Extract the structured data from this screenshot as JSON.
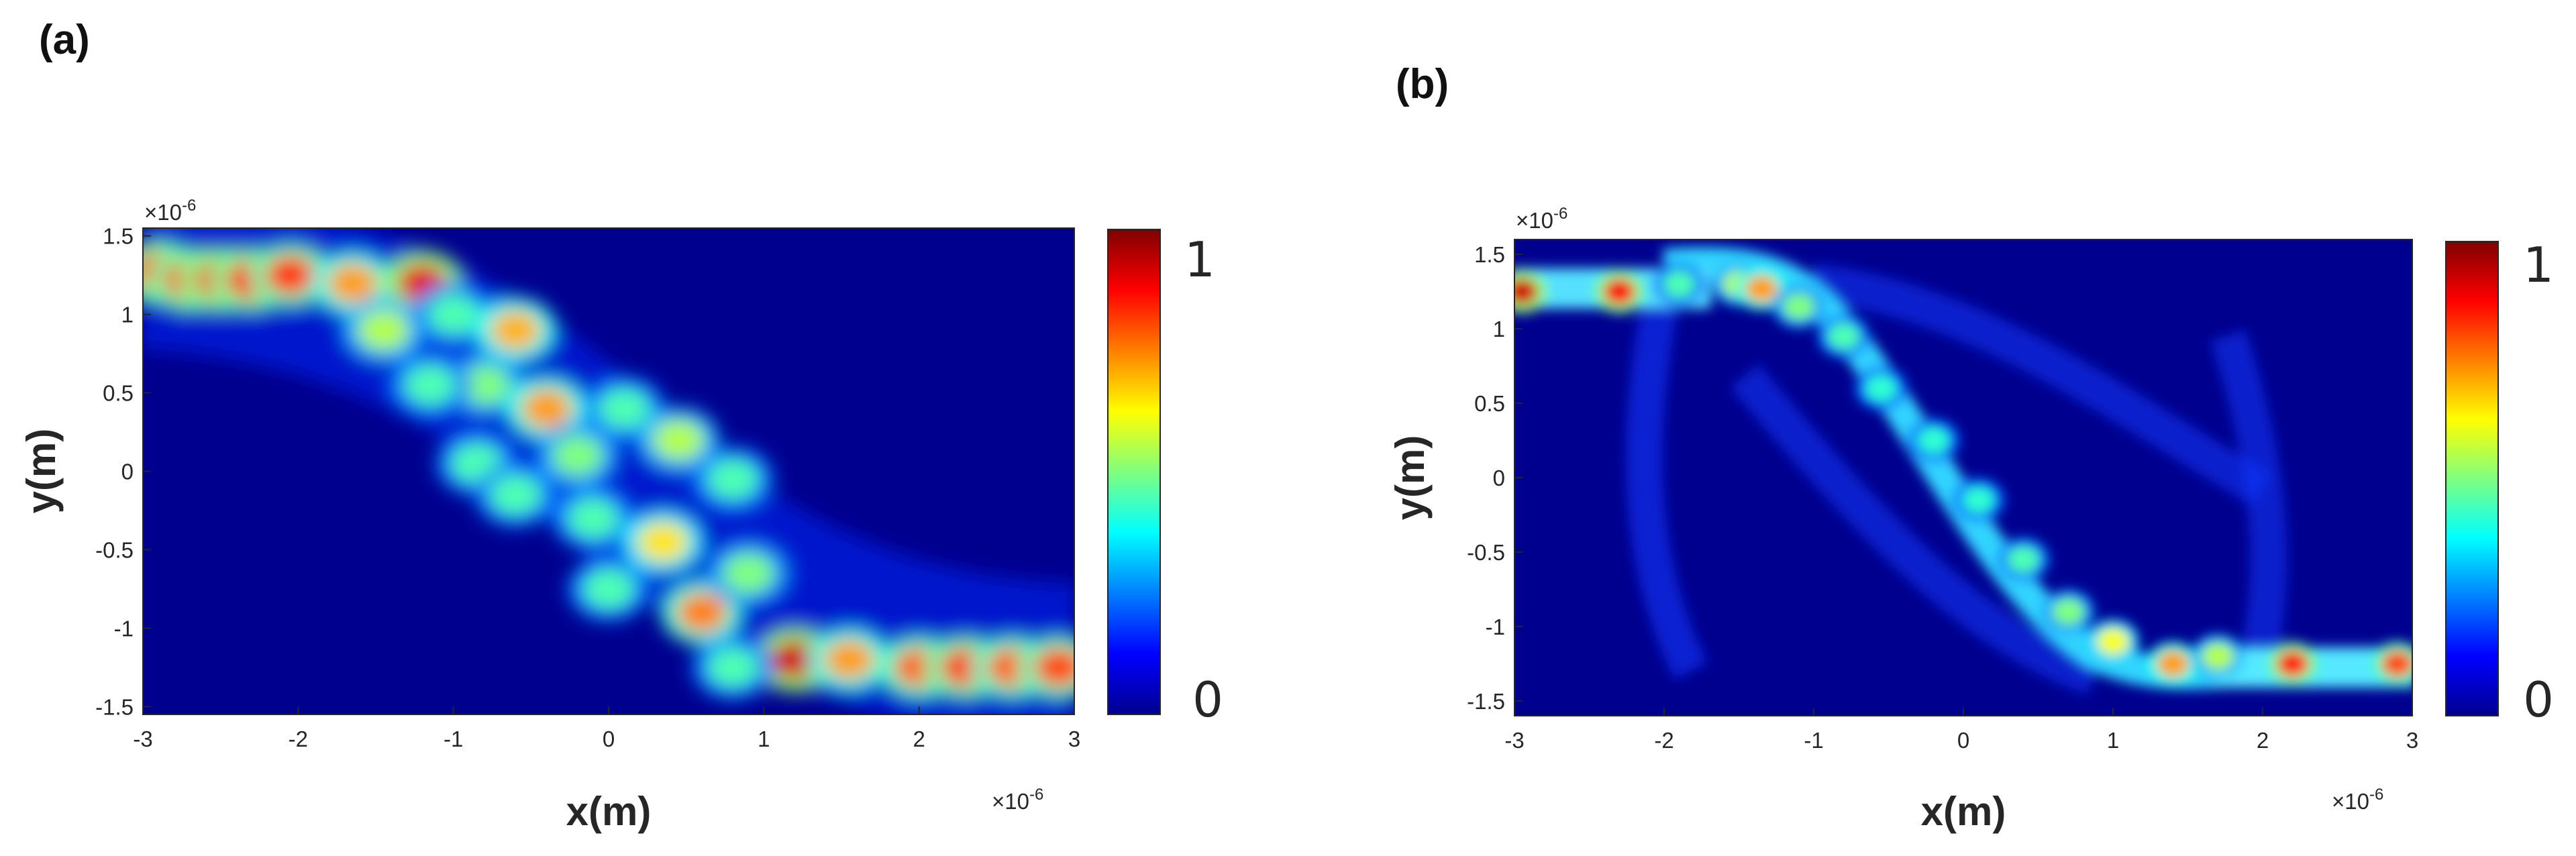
{
  "colors": {
    "low": "#00008f",
    "high": "#800000",
    "axis": "#262626"
  },
  "chart_data": [
    {
      "type": "heatmap",
      "panel_label": "(a)",
      "xlabel": "x(m)",
      "ylabel": "y(m)",
      "x_multiplier": "×10-6",
      "y_multiplier": "×10-6",
      "xlim": [
        -3,
        3
      ],
      "ylim": [
        -1.55,
        1.55
      ],
      "xticks": [
        "-3",
        "-2",
        "-1",
        "0",
        "1",
        "2",
        "3"
      ],
      "xtick_values": [
        -3,
        -2,
        -1,
        0,
        1,
        2,
        3
      ],
      "yticks": [
        "1.5",
        "1",
        "0.5",
        "0",
        "-0.5",
        "-1",
        "-1.5"
      ],
      "ytick_values": [
        1.5,
        1,
        0.5,
        0,
        -0.5,
        -1,
        -1.5
      ],
      "colorbar": {
        "min": 0,
        "max": 1,
        "labels": [
          "1",
          "0"
        ]
      },
      "field_description": "Bright input waveguide at y≈1.27 for x<-2, a zig-zag multimode pattern of discrete bright spots along a diagonal from (-2,1.3) to (2,-1.25), and an output waveguide at y≈-1.25 for x>1.8",
      "hotspots": [
        [
          -2.9,
          1.27,
          0.85
        ],
        [
          -2.7,
          1.22,
          0.85
        ],
        [
          -2.5,
          1.22,
          0.88
        ],
        [
          -2.3,
          1.22,
          0.86
        ],
        [
          -2.05,
          1.25,
          0.82
        ],
        [
          -1.65,
          1.2,
          0.72
        ],
        [
          -1.2,
          1.2,
          0.9
        ],
        [
          -1.45,
          0.9,
          0.55
        ],
        [
          -1.0,
          1.0,
          0.45
        ],
        [
          -0.6,
          0.9,
          0.7
        ],
        [
          -0.8,
          0.55,
          0.5
        ],
        [
          -1.15,
          0.55,
          0.45
        ],
        [
          -0.4,
          0.4,
          0.72
        ],
        [
          -0.85,
          0.05,
          0.45
        ],
        [
          -0.6,
          -0.15,
          0.45
        ],
        [
          -0.2,
          0.1,
          0.5
        ],
        [
          0.1,
          0.4,
          0.45
        ],
        [
          0.45,
          0.2,
          0.55
        ],
        [
          -0.1,
          -0.3,
          0.45
        ],
        [
          0.35,
          -0.45,
          0.65
        ],
        [
          0.8,
          -0.05,
          0.45
        ],
        [
          0.0,
          -0.75,
          0.45
        ],
        [
          0.6,
          -0.9,
          0.75
        ],
        [
          0.9,
          -0.65,
          0.5
        ],
        [
          1.2,
          -1.2,
          0.92
        ],
        [
          1.55,
          -1.2,
          0.72
        ],
        [
          0.8,
          -1.25,
          0.45
        ],
        [
          2.0,
          -1.25,
          0.78
        ],
        [
          2.3,
          -1.25,
          0.82
        ],
        [
          2.6,
          -1.25,
          0.78
        ],
        [
          2.9,
          -1.25,
          0.8
        ]
      ]
    },
    {
      "type": "heatmap",
      "panel_label": "(b)",
      "xlabel": "x(m)",
      "ylabel": "y(m)",
      "x_multiplier": "×10-6",
      "y_multiplier": "×10-6",
      "xlim": [
        -3,
        3
      ],
      "ylim": [
        -1.6,
        1.6
      ],
      "xticks": [
        "-3",
        "-2",
        "-1",
        "0",
        "1",
        "2",
        "3"
      ],
      "xtick_values": [
        -3,
        -2,
        -1,
        0,
        1,
        2,
        3
      ],
      "yticks": [
        "1.5",
        "1",
        "0.5",
        "0",
        "-0.5",
        "-1",
        "-1.5"
      ],
      "ytick_values": [
        1.5,
        1,
        0.5,
        0,
        -0.5,
        -1,
        -1.5
      ],
      "colorbar": {
        "min": 0,
        "max": 1,
        "labels": [
          "1",
          "0"
        ]
      },
      "field_description": "Input waveguide at y≈1.25 for x<-2, a narrow bright S-shaped diagonal channel from (-1.8,1.35) to (1.2,-1.2) flanked by faint ring-like arcs, and an output waveguide at y≈-1.25 for x>1.8",
      "hotspots": [
        [
          -2.95,
          1.25,
          0.92
        ],
        [
          -2.3,
          1.25,
          0.88
        ],
        [
          -1.9,
          1.3,
          0.45
        ],
        [
          -1.5,
          1.3,
          0.55
        ],
        [
          -1.35,
          1.27,
          0.72
        ],
        [
          -1.1,
          1.15,
          0.5
        ],
        [
          -0.8,
          0.95,
          0.45
        ],
        [
          -0.55,
          0.6,
          0.42
        ],
        [
          -0.2,
          0.25,
          0.42
        ],
        [
          0.1,
          -0.15,
          0.42
        ],
        [
          0.4,
          -0.55,
          0.45
        ],
        [
          0.7,
          -0.9,
          0.5
        ],
        [
          1.0,
          -1.1,
          0.62
        ],
        [
          1.4,
          -1.25,
          0.72
        ],
        [
          1.7,
          -1.2,
          0.55
        ],
        [
          2.2,
          -1.25,
          0.85
        ],
        [
          2.9,
          -1.25,
          0.8
        ]
      ]
    }
  ]
}
